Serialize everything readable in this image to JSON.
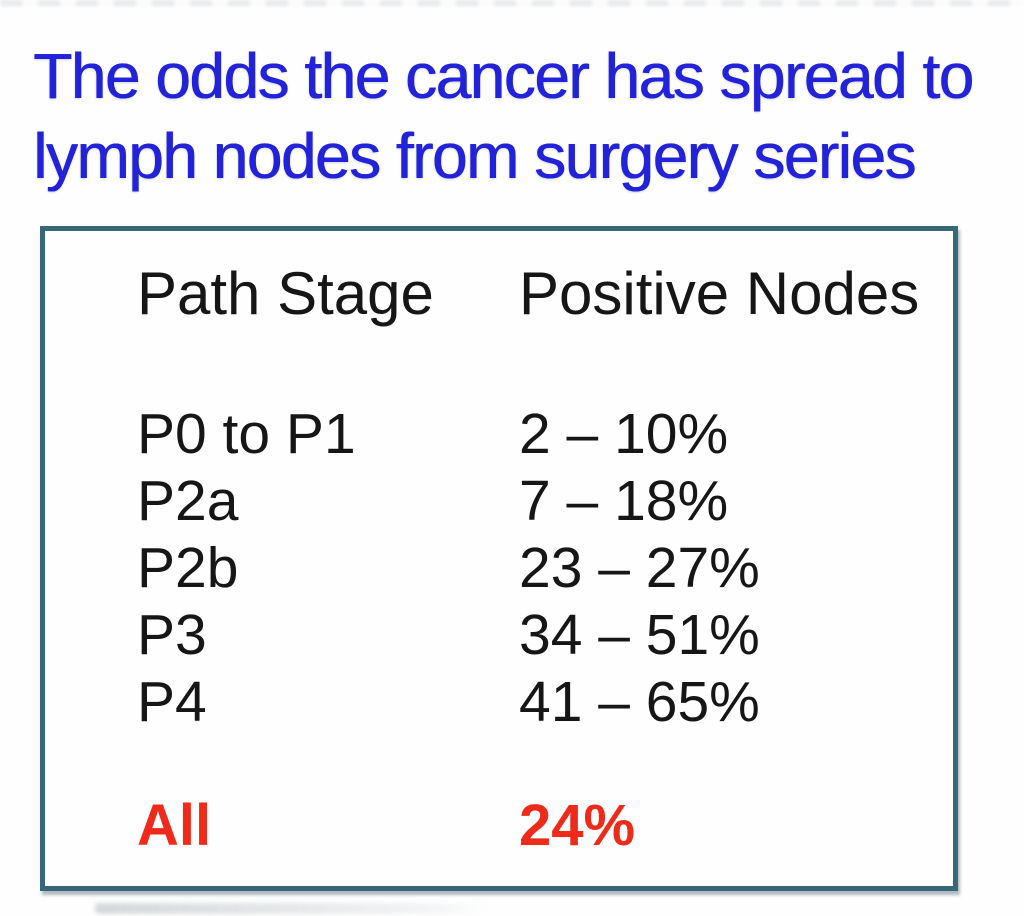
{
  "slide": {
    "title": "The odds the cancer has spread to\nlymph nodes from surgery series"
  },
  "table": {
    "headers": {
      "stage": "Path Stage",
      "nodes": "Positive Nodes"
    },
    "rows": [
      {
        "stage": "P0 to P1",
        "nodes": "2 – 10%"
      },
      {
        "stage": "P2a",
        "nodes": "7 – 18%"
      },
      {
        "stage": "P2b",
        "nodes": "23 – 27%"
      },
      {
        "stage": "P3",
        "nodes": "34 – 51%"
      },
      {
        "stage": "P4",
        "nodes": "41 – 65%"
      }
    ],
    "summary": {
      "stage": "All",
      "nodes": "24%"
    }
  },
  "colors": {
    "title_blue": "#2222d8",
    "border_teal": "#38677a",
    "summary_red": "#ee2a1b",
    "body_text": "#161616"
  }
}
